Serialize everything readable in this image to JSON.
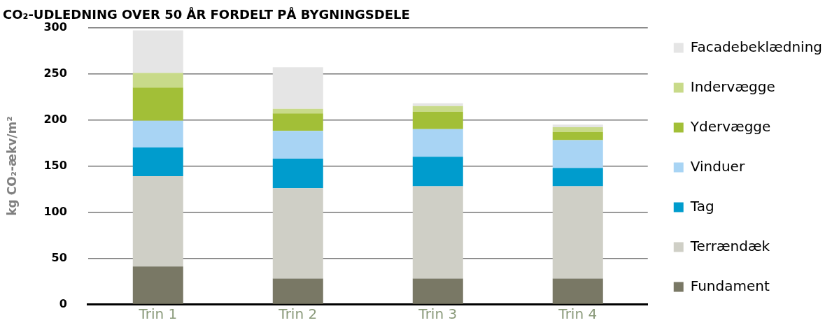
{
  "chart_data": {
    "type": "bar",
    "stacked": true,
    "title": "CO₂-UDLEDNING OVER 50 ÅR FORDELT PÅ BYGNINGSDELE",
    "ylabel": "kg CO₂-ækv/m²",
    "categories": [
      "Trin 1",
      "Trin 2",
      "Trin 3",
      "Trin 4"
    ],
    "series": [
      {
        "name": "Fundament",
        "color": "#797865",
        "values": [
          41,
          28,
          28,
          28
        ]
      },
      {
        "name": "Terrændæk",
        "color": "#cfcfc6",
        "values": [
          98,
          98,
          100,
          100
        ]
      },
      {
        "name": "Tag",
        "color": "#009ccd",
        "values": [
          31,
          32,
          32,
          20
        ]
      },
      {
        "name": "Vinduer",
        "color": "#a8d4f4",
        "values": [
          29,
          30,
          30,
          30
        ]
      },
      {
        "name": "Ydervægge",
        "color": "#a2bf37",
        "values": [
          36,
          19,
          19,
          9
        ]
      },
      {
        "name": "Indervægge",
        "color": "#c8da89",
        "values": [
          16,
          5,
          6,
          5
        ]
      },
      {
        "name": "Facadebeklædning",
        "color": "#e5e5e5",
        "values": [
          46,
          45,
          3,
          3
        ]
      }
    ],
    "ylim": [
      0,
      300
    ],
    "yticks": [
      0,
      50,
      100,
      150,
      200,
      250,
      300
    ],
    "grid": "y",
    "legend": "right"
  }
}
